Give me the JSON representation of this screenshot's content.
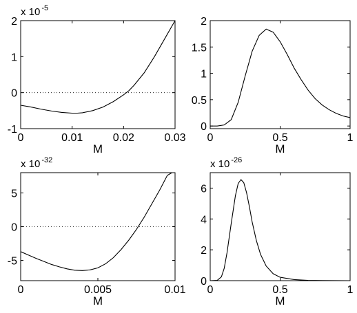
{
  "chart_data": [
    {
      "type": "line",
      "xlabel": "M",
      "ylabel": "",
      "xlim": [
        0,
        0.03
      ],
      "ylim": [
        -1,
        2
      ],
      "xticks": [
        "0",
        "0.01",
        "0.02",
        "0.03"
      ],
      "yticks": [
        "-1",
        "0",
        "1",
        "2"
      ],
      "exponent_prefix": "x 10",
      "exponent": "-5",
      "zero_line": true,
      "series": [
        {
          "x": [
            0,
            0.002,
            0.004,
            0.006,
            0.008,
            0.01,
            0.011,
            0.012,
            0.014,
            0.016,
            0.018,
            0.02,
            0.021,
            0.022,
            0.024,
            0.026,
            0.028,
            0.03
          ],
          "values": [
            -0.35,
            -0.4,
            -0.46,
            -0.51,
            -0.55,
            -0.57,
            -0.57,
            -0.56,
            -0.5,
            -0.4,
            -0.25,
            -0.06,
            0.05,
            0.2,
            0.55,
            1.0,
            1.5,
            2.05
          ]
        }
      ]
    },
    {
      "type": "line",
      "xlabel": "M",
      "ylabel": "",
      "xlim": [
        0,
        1
      ],
      "ylim": [
        -0.05,
        2
      ],
      "xticks": [
        "0",
        "0.5",
        "1"
      ],
      "yticks": [
        "0",
        "0.5",
        "1",
        "1.5",
        "2"
      ],
      "exponent_prefix": "",
      "exponent": "",
      "zero_line": false,
      "series": [
        {
          "x": [
            0,
            0.05,
            0.1,
            0.15,
            0.2,
            0.25,
            0.3,
            0.35,
            0.4,
            0.45,
            0.5,
            0.55,
            0.6,
            0.65,
            0.7,
            0.75,
            0.8,
            0.85,
            0.9,
            0.95,
            1.0
          ],
          "values": [
            0.0,
            0.0,
            0.02,
            0.12,
            0.45,
            0.95,
            1.42,
            1.72,
            1.84,
            1.78,
            1.6,
            1.36,
            1.1,
            0.88,
            0.68,
            0.52,
            0.4,
            0.31,
            0.24,
            0.19,
            0.16
          ]
        }
      ]
    },
    {
      "type": "line",
      "xlabel": "M",
      "ylabel": "",
      "xlim": [
        0,
        0.01
      ],
      "ylim": [
        -8,
        8
      ],
      "xticks": [
        "0",
        "0.005",
        "0.01"
      ],
      "yticks": [
        "-5",
        "0",
        "5"
      ],
      "exponent_prefix": "x 10",
      "exponent": "-32",
      "zero_line": true,
      "series": [
        {
          "x": [
            0,
            0.0005,
            0.001,
            0.0015,
            0.002,
            0.0025,
            0.003,
            0.0035,
            0.004,
            0.0045,
            0.005,
            0.0055,
            0.006,
            0.0065,
            0.007,
            0.0075,
            0.008,
            0.0085,
            0.009,
            0.0095,
            0.0098
          ],
          "values": [
            -3.7,
            -4.2,
            -4.7,
            -5.15,
            -5.6,
            -5.95,
            -6.25,
            -6.45,
            -6.5,
            -6.4,
            -6.1,
            -5.5,
            -4.6,
            -3.4,
            -2.0,
            -0.4,
            1.4,
            3.4,
            5.4,
            7.6,
            8.6
          ]
        }
      ]
    },
    {
      "type": "line",
      "xlabel": "M",
      "ylabel": "",
      "xlim": [
        0,
        1
      ],
      "ylim": [
        0,
        7
      ],
      "xticks": [
        "0",
        "0.5",
        "1"
      ],
      "yticks": [
        "0",
        "2",
        "4",
        "6"
      ],
      "exponent_prefix": "x 10",
      "exponent": "-26",
      "zero_line": false,
      "series": [
        {
          "x": [
            0,
            0.05,
            0.08,
            0.1,
            0.12,
            0.15,
            0.18,
            0.2,
            0.22,
            0.24,
            0.26,
            0.28,
            0.3,
            0.33,
            0.36,
            0.4,
            0.45,
            0.5,
            0.6,
            0.7,
            0.8,
            1.0
          ],
          "values": [
            0.0,
            0.02,
            0.25,
            0.8,
            1.8,
            3.7,
            5.5,
            6.3,
            6.55,
            6.35,
            5.7,
            4.8,
            3.8,
            2.6,
            1.7,
            0.95,
            0.45,
            0.22,
            0.07,
            0.02,
            0.01,
            0.0
          ]
        }
      ]
    }
  ]
}
